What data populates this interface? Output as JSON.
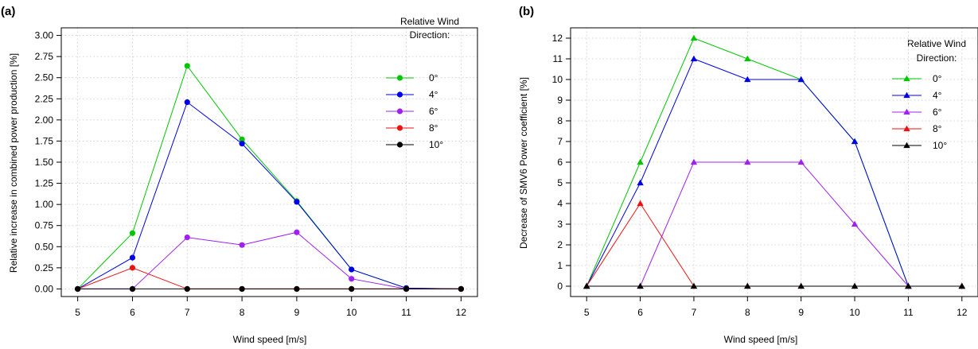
{
  "chart_data": [
    {
      "type": "line",
      "panel_label": "(a)",
      "xlabel": "Wind speed [m/s]",
      "ylabel": "Relative increase in combined power production [%]",
      "x": [
        5,
        6,
        7,
        8,
        9,
        10,
        11,
        12
      ],
      "xlim": [
        4.7,
        12.3
      ],
      "ylim": [
        -0.09,
        3.09
      ],
      "yticks": [
        "0.00",
        "0.25",
        "0.50",
        "0.75",
        "1.00",
        "1.25",
        "1.50",
        "1.75",
        "2.00",
        "2.25",
        "2.50",
        "2.75",
        "3.00"
      ],
      "marker": "circle",
      "grid": true,
      "legend_title": [
        "Relative Wind",
        "Direction:"
      ],
      "legend_position": "top-right",
      "series": [
        {
          "name": "0°",
          "color": "#00c800",
          "values": [
            0.0,
            0.66,
            2.64,
            1.77,
            1.04,
            0.23,
            0.01,
            0.0
          ]
        },
        {
          "name": "4°",
          "color": "#0000e6",
          "values": [
            0.0,
            0.37,
            2.21,
            1.72,
            1.03,
            0.23,
            0.01,
            0.0
          ]
        },
        {
          "name": "6°",
          "color": "#a020f0",
          "values": [
            0.0,
            0.0,
            0.61,
            0.52,
            0.67,
            0.12,
            0.0,
            0.0
          ]
        },
        {
          "name": "8°",
          "color": "#ee1111",
          "values": [
            0.0,
            0.25,
            0.0,
            0.0,
            0.0,
            0.0,
            0.0,
            0.0
          ]
        },
        {
          "name": "10°",
          "color": "#000000",
          "values": [
            0.0,
            0.0,
            0.0,
            0.0,
            0.0,
            0.0,
            0.0,
            0.0
          ]
        }
      ]
    },
    {
      "type": "line",
      "panel_label": "(b)",
      "xlabel": "Wind speed [m/s]",
      "ylabel": "Decrease of SMV6 Power coefficient [%]",
      "x": [
        5,
        6,
        7,
        8,
        9,
        10,
        11,
        12
      ],
      "xlim": [
        4.7,
        12.3
      ],
      "ylim": [
        -0.5,
        12.5
      ],
      "yticks": [
        "0",
        "1",
        "2",
        "3",
        "4",
        "5",
        "6",
        "7",
        "8",
        "9",
        "10",
        "11",
        "12"
      ],
      "marker": "triangle",
      "grid": true,
      "legend_title": [
        "Relative Wind",
        "Direction:"
      ],
      "legend_position": "top-right",
      "series": [
        {
          "name": "0°",
          "color": "#00c800",
          "values": [
            0,
            6,
            12,
            11,
            10,
            7,
            0,
            0
          ]
        },
        {
          "name": "4°",
          "color": "#0000e6",
          "values": [
            0,
            5,
            11,
            10,
            10,
            7,
            0,
            0
          ]
        },
        {
          "name": "6°",
          "color": "#a020f0",
          "values": [
            0,
            0,
            6,
            6,
            6,
            3,
            0,
            0
          ]
        },
        {
          "name": "8°",
          "color": "#ee1111",
          "values": [
            0,
            4,
            0,
            0,
            0,
            0,
            0,
            0
          ]
        },
        {
          "name": "10°",
          "color": "#000000",
          "values": [
            0,
            0,
            0,
            0,
            0,
            0,
            0,
            0
          ]
        }
      ]
    }
  ]
}
